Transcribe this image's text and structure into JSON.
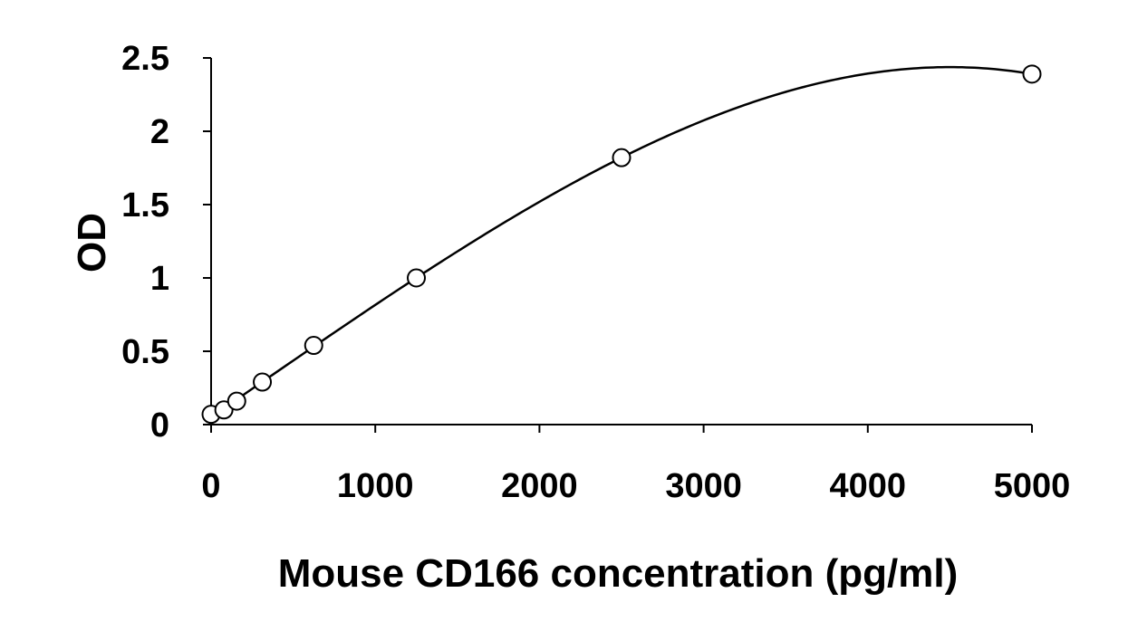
{
  "chart_data": {
    "type": "scatter",
    "title": "",
    "xlabel": "Mouse CD166 concentration (pg/ml)",
    "ylabel": "OD",
    "xlim": [
      0,
      5000
    ],
    "ylim": [
      0,
      2.5
    ],
    "x_ticks": [
      0,
      1000,
      2000,
      3000,
      4000,
      5000
    ],
    "y_ticks": [
      0,
      0.5,
      1,
      1.5,
      2,
      2.5
    ],
    "x_tick_labels": [
      "0",
      "1000",
      "2000",
      "3000",
      "4000",
      "5000"
    ],
    "y_tick_labels": [
      "0",
      "0.5",
      "1",
      "1.5",
      "2",
      "2.5"
    ],
    "grid": false,
    "legend": "none",
    "series": [
      {
        "x": [
          0,
          78,
          156,
          312,
          625,
          1250,
          2500,
          5000
        ],
        "y": [
          0.07,
          0.1,
          0.16,
          0.29,
          0.54,
          1.0,
          1.82,
          2.39
        ],
        "marker": "open-circle",
        "color": "#000000",
        "fit_curve": "smooth"
      }
    ]
  }
}
